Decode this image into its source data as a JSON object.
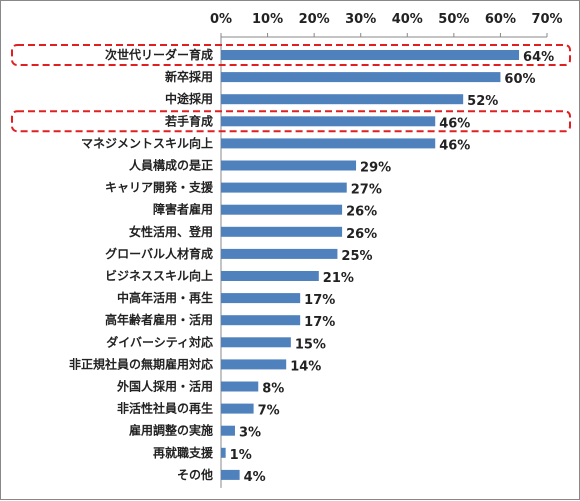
{
  "chart_data": {
    "type": "bar",
    "orientation": "horizontal",
    "categories": [
      "次世代リーダー育成",
      "新卒採用",
      "中途採用",
      "若手育成",
      "マネジメントスキル向上",
      "人員構成の是正",
      "キャリア開発・支援",
      "障害者雇用",
      "女性活用、登用",
      "グローバル人材育成",
      "ビジネススキル向上",
      "中高年活用・再生",
      "高年齢者雇用・活用",
      "ダイバーシティ対応",
      "非正規社員の無期雇用対応",
      "外国人採用・活用",
      "非活性社員の再生",
      "雇用調整の実施",
      "再就職支援",
      "その他"
    ],
    "values": [
      64,
      60,
      52,
      46,
      46,
      29,
      27,
      26,
      26,
      25,
      21,
      17,
      17,
      15,
      14,
      8,
      7,
      3,
      1,
      4
    ],
    "value_labels": [
      "64%",
      "60%",
      "52%",
      "46%",
      "46%",
      "29%",
      "27%",
      "26%",
      "26%",
      "25%",
      "21%",
      "17%",
      "17%",
      "15%",
      "14%",
      "8%",
      "7%",
      "3%",
      "1%",
      "4%"
    ],
    "x_ticks": [
      "0%",
      "10%",
      "20%",
      "30%",
      "40%",
      "50%",
      "60%",
      "70%"
    ],
    "xlim": [
      0,
      70
    ],
    "axis_position": "top",
    "bar_color": "#4f81bd",
    "highlight_color": "#e02020",
    "highlighted": [
      "次世代リーダー育成",
      "若手育成"
    ],
    "grid": false,
    "title": "",
    "xlabel": "",
    "ylabel": ""
  }
}
